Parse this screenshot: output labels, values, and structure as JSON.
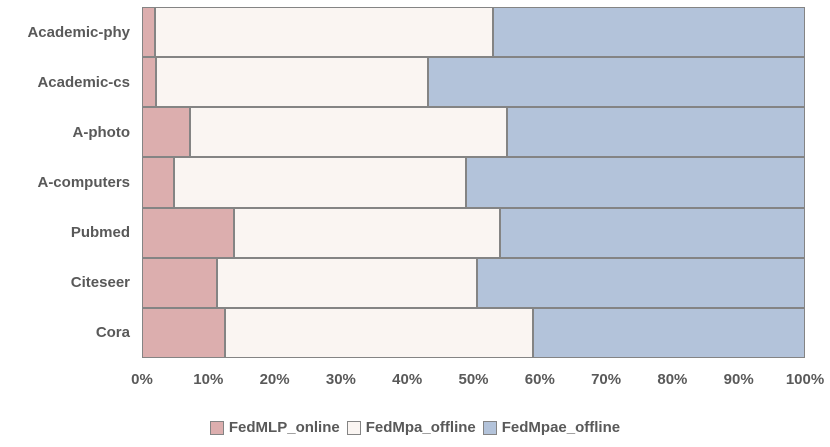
{
  "chart_data": {
    "type": "bar",
    "orientation": "horizontal",
    "stacked": true,
    "stack_mode": "100%",
    "title": "",
    "xlabel": "",
    "ylabel": "",
    "xlim": [
      0,
      100
    ],
    "grid": false,
    "legend_position": "bottom",
    "categories": [
      "Academic-phy",
      "Academic-cs",
      "A-photo",
      "A-computers",
      "Pubmed",
      "Citeseer",
      "Cora"
    ],
    "series": [
      {
        "name": "FedMLP_online",
        "color": "#dcaeae",
        "values": [
          2.0,
          2.1,
          7.3,
          4.9,
          13.9,
          11.3,
          12.5
        ]
      },
      {
        "name": "FedMpa_offline",
        "color": "#faf5f2",
        "values": [
          51.0,
          41.0,
          47.7,
          44.0,
          40.1,
          39.2,
          46.4
        ]
      },
      {
        "name": "FedMpae_offline",
        "color": "#b3c3da",
        "values": [
          47.0,
          56.9,
          45.0,
          51.1,
          46.0,
          49.5,
          41.1
        ]
      }
    ],
    "x_ticks": [
      "0%",
      "10%",
      "20%",
      "30%",
      "40%",
      "50%",
      "60%",
      "70%",
      "80%",
      "90%",
      "100%"
    ],
    "colors": {
      "bar_border": "#848484",
      "text": "#595959",
      "background": "#ffffff"
    }
  }
}
